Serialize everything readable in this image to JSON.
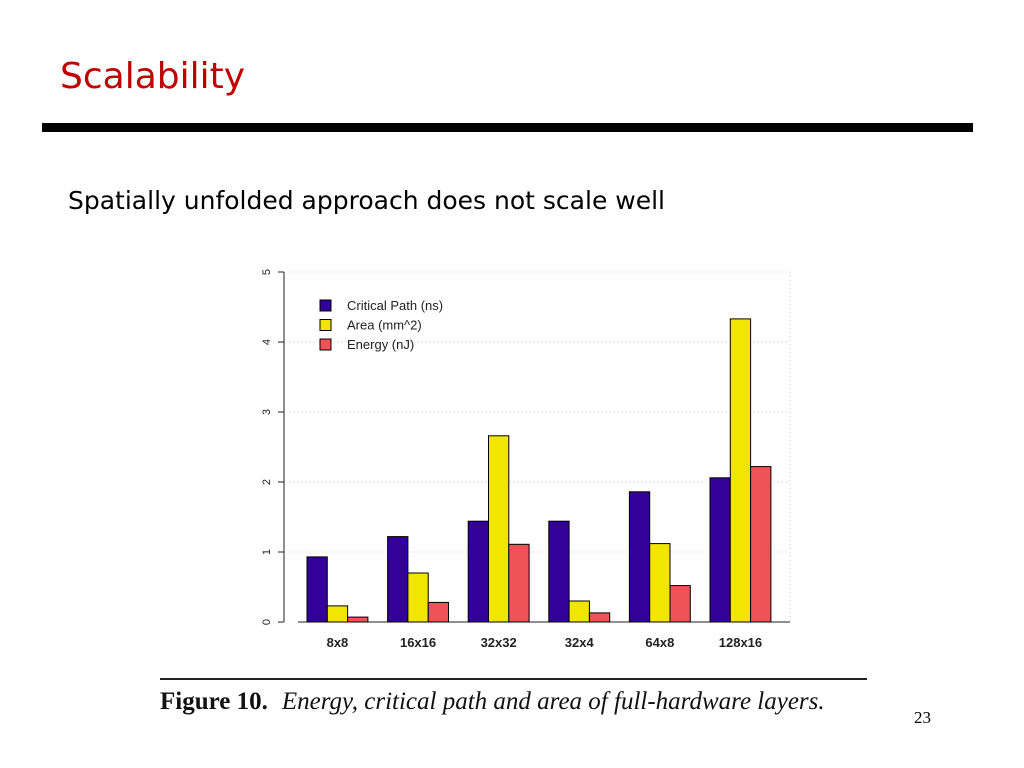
{
  "slide": {
    "title": "Scalability",
    "subtitle": "Spatially unfolded approach does not scale well",
    "page_number": "23"
  },
  "figure": {
    "label": "Figure 10.",
    "caption": "Energy, critical path and area of full-hardware layers."
  },
  "chart_data": {
    "type": "bar",
    "categories": [
      "8x8",
      "16x16",
      "32x32",
      "32x4",
      "64x8",
      "128x16"
    ],
    "series": [
      {
        "name": "Critical Path (ns)",
        "color": "#330099",
        "values": [
          0.93,
          1.22,
          1.44,
          1.44,
          1.86,
          2.06
        ]
      },
      {
        "name": "Area (mm^2)",
        "color": "#f2e600",
        "values": [
          0.23,
          0.7,
          2.66,
          0.3,
          1.12,
          4.33
        ]
      },
      {
        "name": "Energy (nJ)",
        "color": "#ef5358",
        "values": [
          0.07,
          0.28,
          1.11,
          0.13,
          0.52,
          2.22
        ]
      }
    ],
    "y_ticks": [
      "0",
      "1",
      "2",
      "3",
      "4",
      "5"
    ],
    "ylim": [
      0,
      5
    ],
    "grid": true,
    "legend_position": "top-left"
  }
}
